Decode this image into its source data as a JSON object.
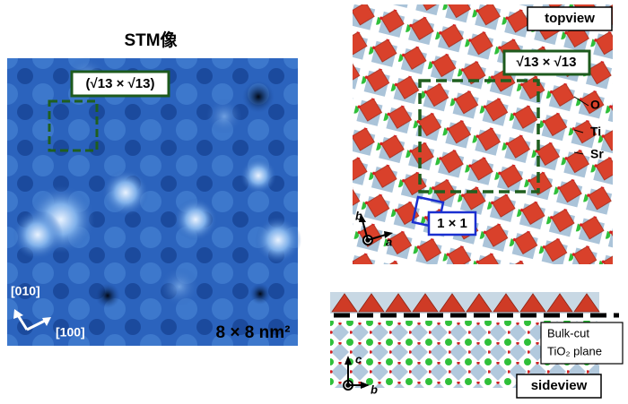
{
  "stm_panel": {
    "title": "STM像",
    "supercell_label": "(√13 × √13)",
    "direction_1": "[010]",
    "direction_2": "[100]",
    "scale": "8 × 8 nm²"
  },
  "topview": {
    "title": "topview",
    "supercell_label": "√13 × √13",
    "unit_cell_label": "1 × 1",
    "atoms": [
      "O",
      "Ti",
      "Sr"
    ],
    "axis_b": "b",
    "axis_a": "a"
  },
  "sideview": {
    "title": "sideview",
    "plane_label_1": "Bulk-cut",
    "plane_label_2": "TiO₂ plane",
    "axis_c": "c",
    "axis_b": "b"
  }
}
